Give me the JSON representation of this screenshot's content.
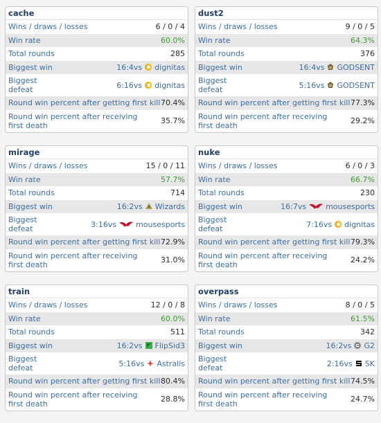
{
  "labels": {
    "wdl": "Wins / draws / losses",
    "win_rate": "Win rate",
    "total_rounds": "Total rounds",
    "biggest_win": "Biggest win",
    "biggest_defeat": "Biggest defeat",
    "first_kill": "Round win percent after getting first kill",
    "first_death": "Round win percent after receiving first death",
    "vs": "vs"
  },
  "maps": [
    {
      "name": "cache",
      "wdl": "6 / 0 / 4",
      "win_rate": "60.0%",
      "total_rounds": "285",
      "biggest_win": {
        "score": "16:4",
        "team": "dignitas",
        "logo": "dignitas-logo"
      },
      "biggest_defeat": {
        "score": "6:16",
        "team": "dignitas",
        "logo": "dignitas-logo"
      },
      "first_kill": "70.4%",
      "first_death": "35.7%"
    },
    {
      "name": "dust2",
      "wdl": "9 / 0 / 5",
      "win_rate": "64.3%",
      "total_rounds": "376",
      "biggest_win": {
        "score": "16:4",
        "team": "GODSENT",
        "logo": "godsent-logo"
      },
      "biggest_defeat": {
        "score": "5:16",
        "team": "GODSENT",
        "logo": "godsent-logo"
      },
      "first_kill": "77.3%",
      "first_death": "29.2%"
    },
    {
      "name": "mirage",
      "wdl": "15 / 0 / 11",
      "win_rate": "57.7%",
      "total_rounds": "714",
      "biggest_win": {
        "score": "16:2",
        "team": "Wizards",
        "logo": "wizards-logo"
      },
      "biggest_defeat": {
        "score": "3:16",
        "team": "mousesports",
        "logo": "mousesports-logo"
      },
      "first_kill": "72.9%",
      "first_death": "31.0%"
    },
    {
      "name": "nuke",
      "wdl": "6 / 0 / 3",
      "win_rate": "66.7%",
      "total_rounds": "230",
      "biggest_win": {
        "score": "16:7",
        "team": "mousesports",
        "logo": "mousesports-logo"
      },
      "biggest_defeat": {
        "score": "7:16",
        "team": "dignitas",
        "logo": "dignitas-logo"
      },
      "first_kill": "79.3%",
      "first_death": "24.2%"
    },
    {
      "name": "train",
      "wdl": "12 / 0 / 8",
      "win_rate": "60.0%",
      "total_rounds": "511",
      "biggest_win": {
        "score": "16:2",
        "team": "FlipSid3",
        "logo": "flipsid3-logo"
      },
      "biggest_defeat": {
        "score": "5:16",
        "team": "Astralis",
        "logo": "astralis-logo"
      },
      "first_kill": "80.4%",
      "first_death": "28.8%"
    },
    {
      "name": "overpass",
      "wdl": "8 / 0 / 5",
      "win_rate": "61.5%",
      "total_rounds": "342",
      "biggest_win": {
        "score": "16:2",
        "team": "G2",
        "logo": "g2-logo"
      },
      "biggest_defeat": {
        "score": "2:16",
        "team": "SK",
        "logo": "sk-logo"
      },
      "first_kill": "74.5%",
      "first_death": "24.7%"
    }
  ],
  "colors": {
    "link": "#3a6ea5",
    "positive": "#3d9a2f",
    "row_alt": "#e7e7e7",
    "title": "#1f3f6a"
  }
}
